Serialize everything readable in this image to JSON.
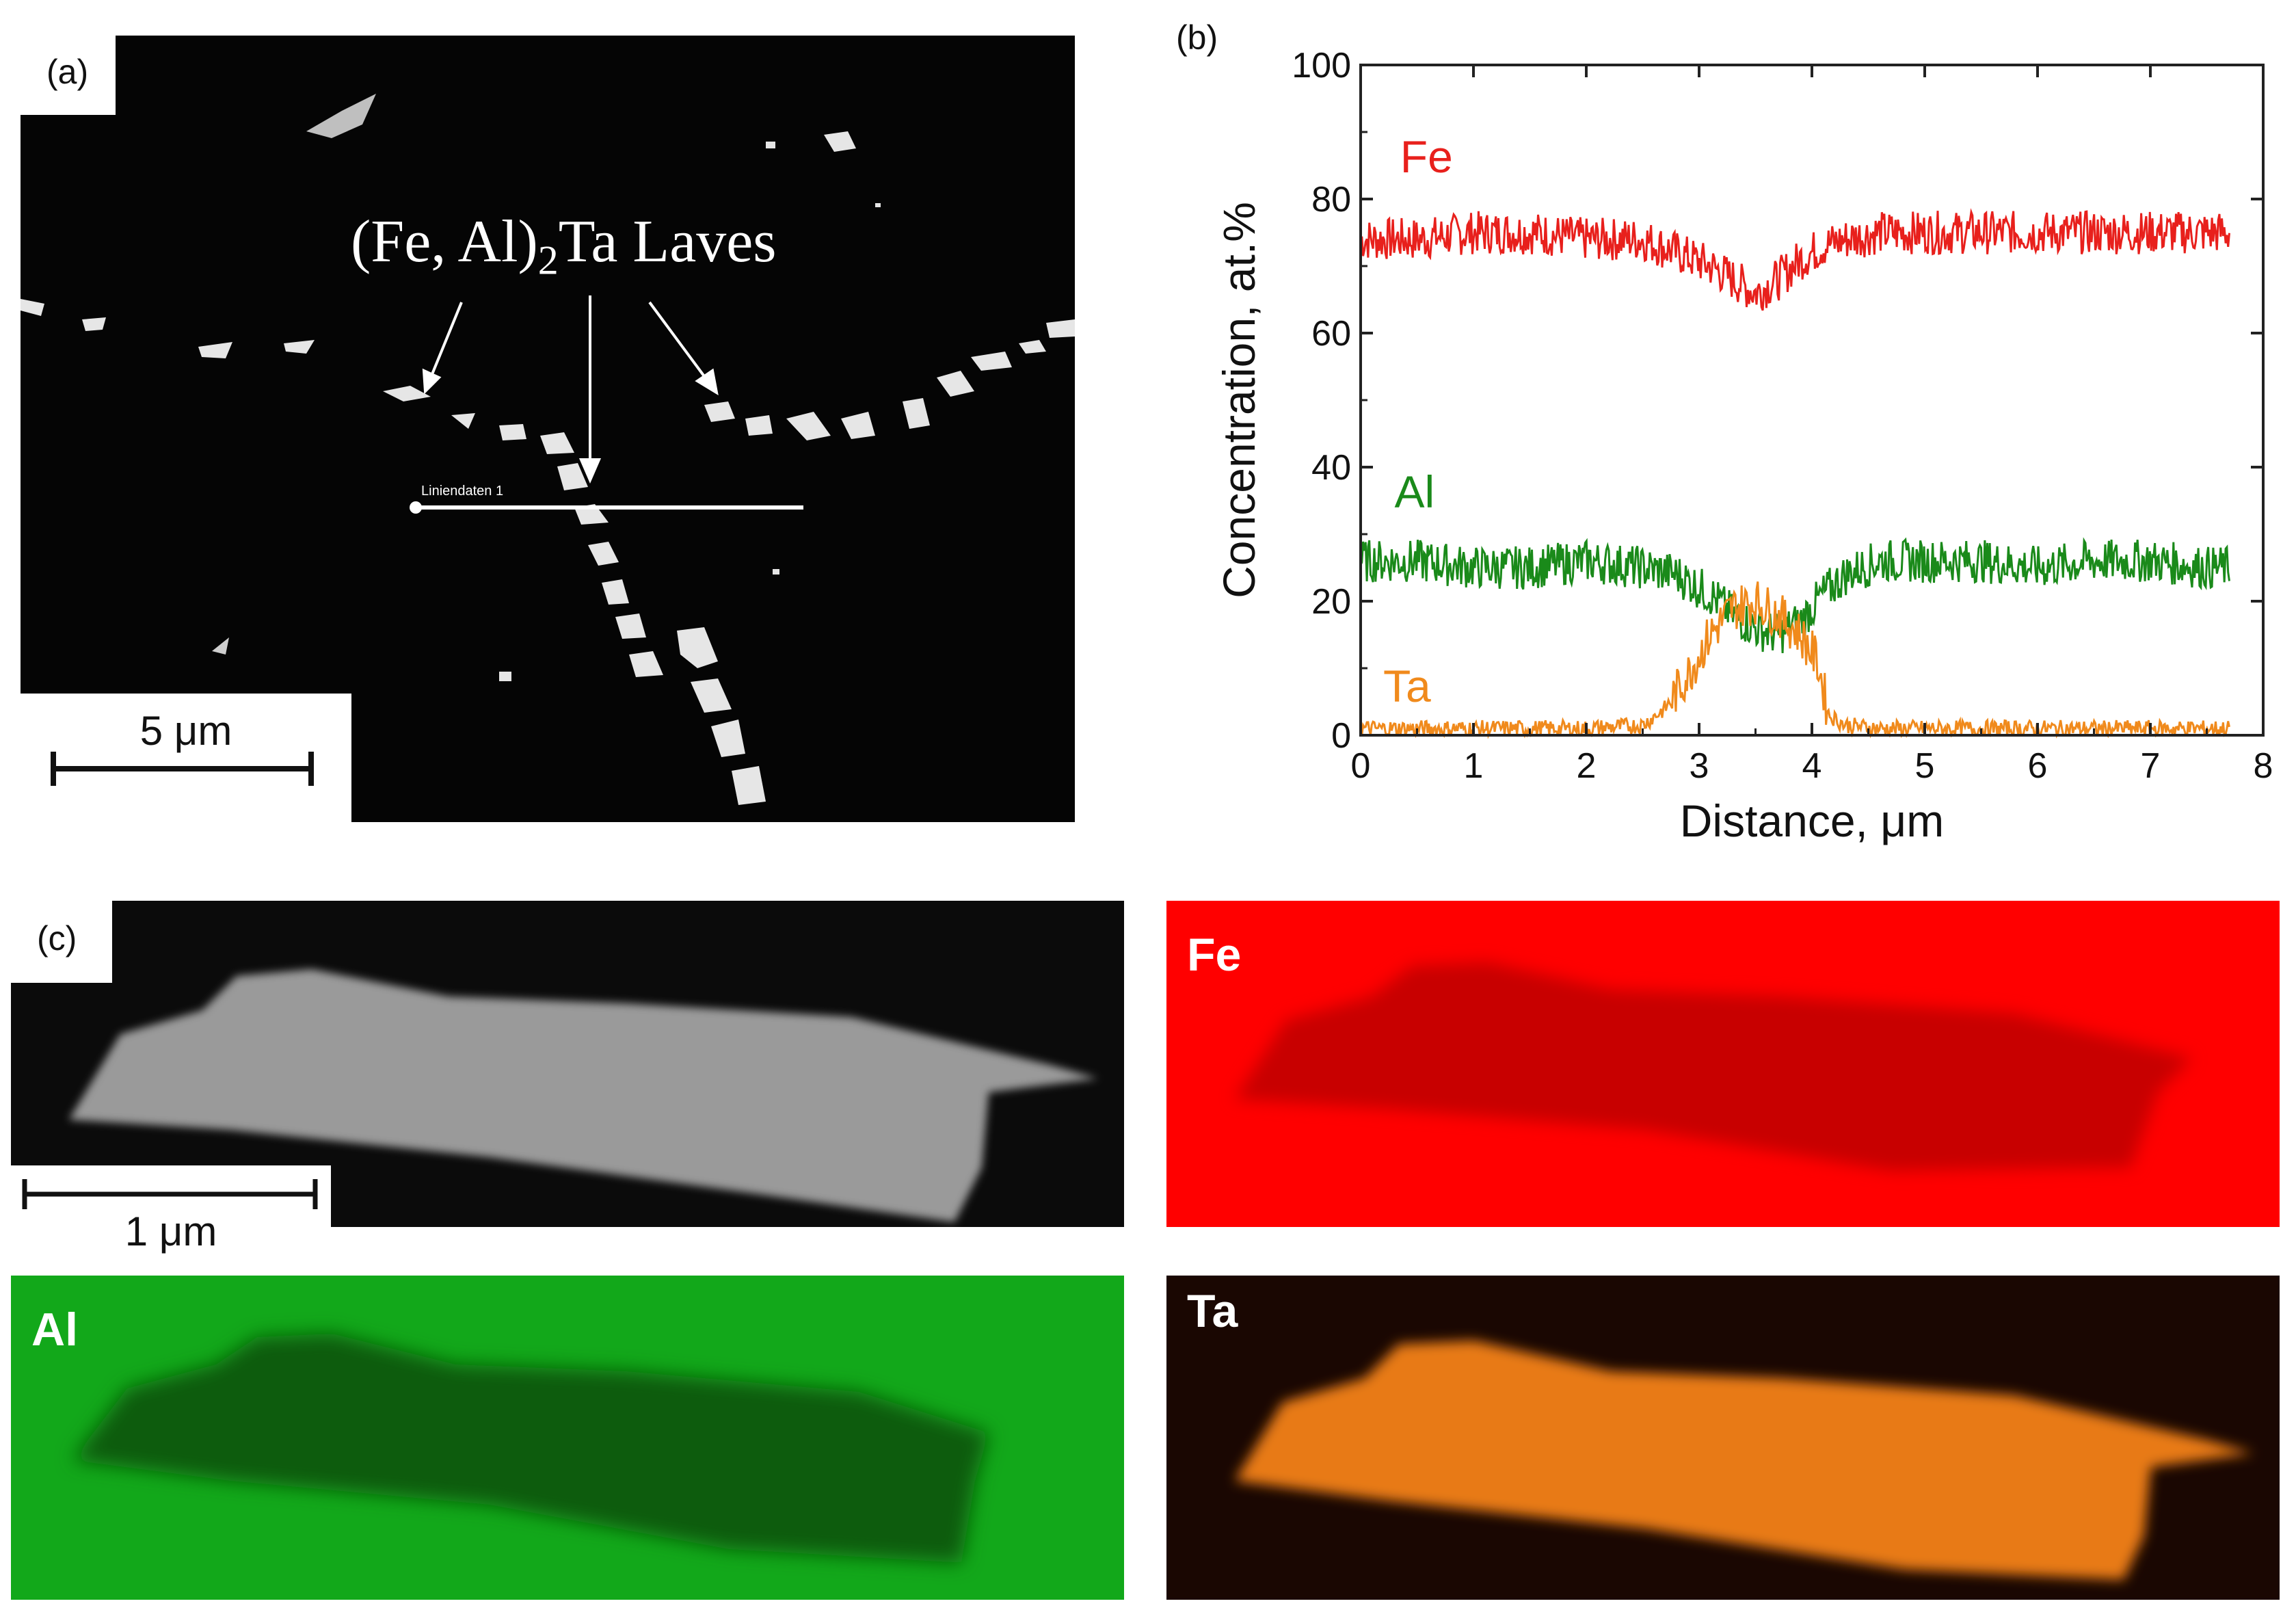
{
  "panel_a": {
    "label": "(a)",
    "annotation": "(Fe, Al)",
    "annotation_sub": "2",
    "annotation_tail": "Ta Laves",
    "line_label": "Liniendaten 1",
    "scale_label": "5 μm"
  },
  "panel_b": {
    "label": "(b)"
  },
  "panel_c": {
    "label": "(c)",
    "scale_label": "1 μm",
    "maps": [
      {
        "label": "Fe",
        "color": "#ff0000"
      },
      {
        "label": "Al",
        "color": "#12a81a"
      },
      {
        "label": "Ta",
        "color": "#ff8a1a"
      }
    ]
  },
  "chart_data": {
    "type": "line",
    "title": "",
    "xlabel": "Distance, μm",
    "ylabel": "Concentration, at.%",
    "xlim": [
      0,
      8
    ],
    "ylim": [
      0,
      100
    ],
    "xticks": [
      "0",
      "1",
      "2",
      "3",
      "4",
      "5",
      "6",
      "7",
      "8"
    ],
    "yticks": [
      "0",
      "20",
      "40",
      "60",
      "80",
      "100"
    ],
    "series": [
      {
        "name": "Fe",
        "color": "#e8201c",
        "x": [
          0,
          0.5,
          1.0,
          1.5,
          2.0,
          2.5,
          2.8,
          3.1,
          3.3,
          3.5,
          3.7,
          3.9,
          4.1,
          4.3,
          4.6,
          5.0,
          5.5,
          6.0,
          6.5,
          7.0,
          7.5,
          7.7
        ],
        "y": [
          74,
          74,
          75,
          75,
          74,
          74,
          72,
          70,
          68,
          66,
          68,
          71,
          73,
          74,
          75,
          75,
          75,
          75,
          75,
          75,
          75,
          75
        ]
      },
      {
        "name": "Al",
        "color": "#1a8a1a",
        "x": [
          0,
          0.5,
          1.0,
          1.5,
          2.0,
          2.5,
          2.8,
          3.1,
          3.3,
          3.5,
          3.7,
          3.9,
          4.1,
          4.3,
          4.6,
          5.0,
          5.5,
          6.0,
          6.5,
          7.0,
          7.5,
          7.7
        ],
        "y": [
          26,
          26,
          25,
          25,
          26,
          25,
          24,
          21,
          18,
          16,
          15,
          17,
          21,
          24,
          26,
          26,
          26,
          25,
          26,
          26,
          25,
          25
        ]
      },
      {
        "name": "Ta",
        "color": "#f08a1c",
        "x": [
          0,
          0.5,
          1.0,
          1.5,
          2.0,
          2.5,
          2.7,
          2.9,
          3.1,
          3.3,
          3.5,
          3.7,
          3.9,
          4.05,
          4.15,
          4.3,
          4.6,
          5.0,
          5.5,
          6.0,
          6.5,
          7.0,
          7.5,
          7.7
        ],
        "y": [
          1,
          1,
          1,
          1,
          1,
          1.5,
          4,
          9,
          15,
          19,
          20,
          18,
          15,
          11,
          3,
          1.5,
          1,
          1,
          1,
          1,
          1,
          1,
          1,
          1
        ]
      }
    ],
    "noise_amplitude": 2.5
  }
}
